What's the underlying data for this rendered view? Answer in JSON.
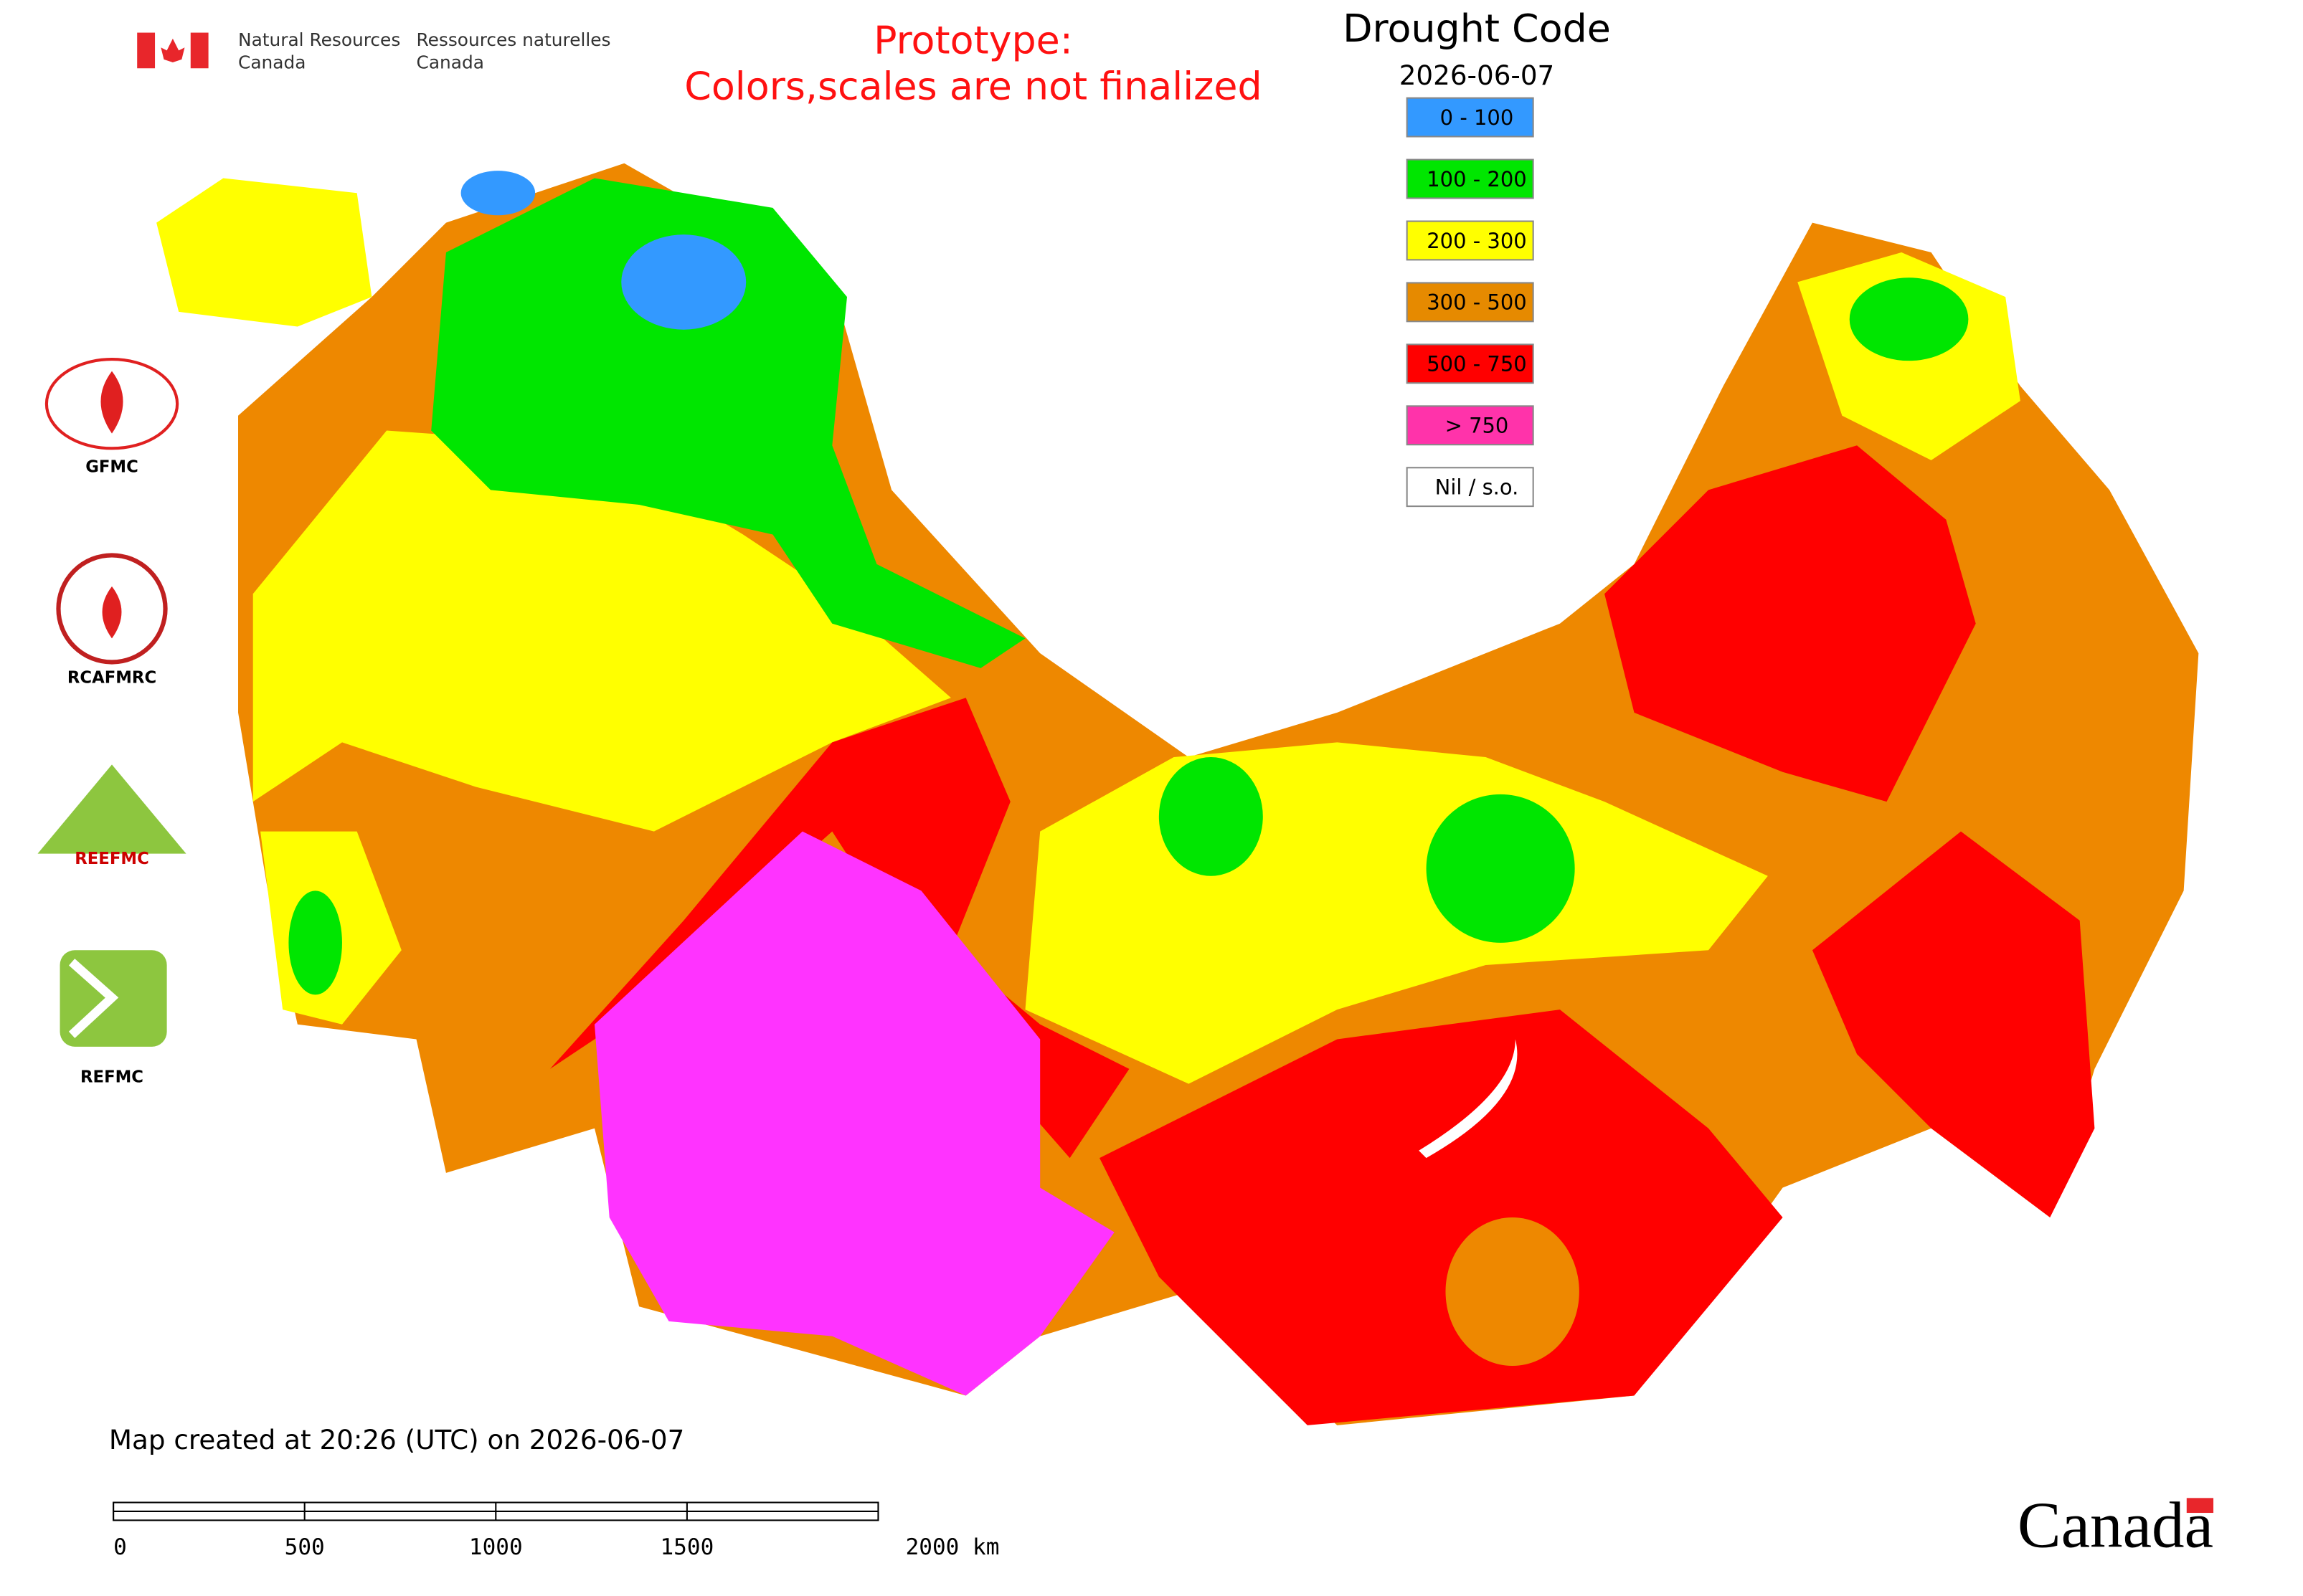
{
  "header": {
    "dept_en": [
      "Natural Resources",
      "Canada"
    ],
    "dept_fr": [
      "Ressources naturelles",
      "Canada"
    ]
  },
  "notice": [
    "Prototype:",
    "Colors,scales are not finalized"
  ],
  "map": {
    "title": "Drought Code",
    "date": "2026-06-07",
    "legend": [
      {
        "label": "0 - 100",
        "color": "#3399ff"
      },
      {
        "label": "100 - 200",
        "color": "#00e600"
      },
      {
        "label": "200 - 300",
        "color": "#ffff00"
      },
      {
        "label": "300 - 500",
        "color": "#e68a00"
      },
      {
        "label": "500 - 750",
        "color": "#ff0000"
      },
      {
        "label": "> 750",
        "color": "#ff33aa"
      },
      {
        "label": "Nil / s.o.",
        "color": "#ffffff"
      }
    ]
  },
  "logos": [
    "GFMC",
    "RCAFMRC",
    "REEFMC",
    "REFMC"
  ],
  "footer": {
    "created": "Map created at 20:26 (UTC) on 2026-06-07",
    "wordmark": "Canada"
  },
  "scale_bar": {
    "xlim": [
      0,
      2000
    ],
    "ticks": [
      0,
      500,
      1000,
      1500,
      {
        "value": 2000,
        "label": "2000 km"
      }
    ]
  }
}
